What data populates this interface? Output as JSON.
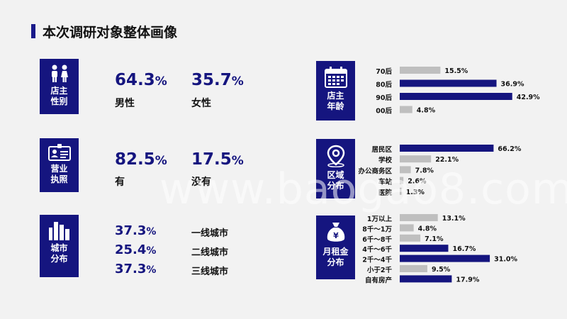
{
  "page": {
    "title": "本次调研对象整体画像",
    "watermark": "www.baogao8.com"
  },
  "left": {
    "gender": {
      "icon_label_1": "店主",
      "icon_label_2": "性别",
      "items": [
        {
          "value": "64.3",
          "unit": "%",
          "label": "男性"
        },
        {
          "value": "35.7",
          "unit": "%",
          "label": "女性"
        }
      ]
    },
    "license": {
      "icon_label_1": "营业",
      "icon_label_2": "执照",
      "items": [
        {
          "value": "82.5",
          "unit": "%",
          "label": "有"
        },
        {
          "value": "17.5",
          "unit": "%",
          "label": "没有"
        }
      ]
    },
    "city": {
      "icon_label_1": "城市",
      "icon_label_2": "分布",
      "items": [
        {
          "value": "37.3",
          "unit": "%",
          "label": "一线城市"
        },
        {
          "value": "25.4",
          "unit": "%",
          "label": "二线城市"
        },
        {
          "value": "37.3",
          "unit": "%",
          "label": "三线城市"
        }
      ]
    }
  },
  "right_icons": {
    "age": {
      "label_1": "店主",
      "label_2": "年龄"
    },
    "area": {
      "label_1": "区域",
      "label_2": "分布"
    },
    "rent": {
      "label_1": "月租金",
      "label_2": "分布"
    }
  },
  "colors": {
    "navy": "#15157f",
    "gray": "#bfbfbf",
    "bg": "#f2f2f2"
  },
  "chart_data": [
    {
      "type": "bar",
      "orientation": "horizontal",
      "categories": [
        "70后",
        "80后",
        "90后",
        "00后"
      ],
      "values": [
        15.5,
        36.9,
        42.9,
        4.8
      ],
      "labels": [
        "15.5%",
        "36.9%",
        "42.9%",
        "4.8%"
      ],
      "highlight": [
        false,
        true,
        true,
        false
      ]
    },
    {
      "type": "bar",
      "orientation": "horizontal",
      "categories": [
        "居民区",
        "学校",
        "办公商务区",
        "车站",
        "医院"
      ],
      "values": [
        66.2,
        22.1,
        7.8,
        2.6,
        1.3
      ],
      "labels": [
        "66.2%",
        "22.1%",
        "7.8%",
        "2.6%",
        "1.3%"
      ],
      "highlight": [
        true,
        false,
        false,
        false,
        false
      ]
    },
    {
      "type": "bar",
      "orientation": "horizontal",
      "categories": [
        "1万以上",
        "8千～1万",
        "6千～8千",
        "4千～6千",
        "2千～4千",
        "小于2千",
        "自有房产"
      ],
      "values": [
        13.1,
        4.8,
        7.1,
        16.7,
        31.0,
        9.5,
        17.9
      ],
      "labels": [
        "13.1%",
        "4.8%",
        "7.1%",
        "16.7%",
        "31.0%",
        "9.5%",
        "17.9%"
      ],
      "highlight": [
        false,
        false,
        false,
        true,
        true,
        false,
        true
      ]
    }
  ]
}
